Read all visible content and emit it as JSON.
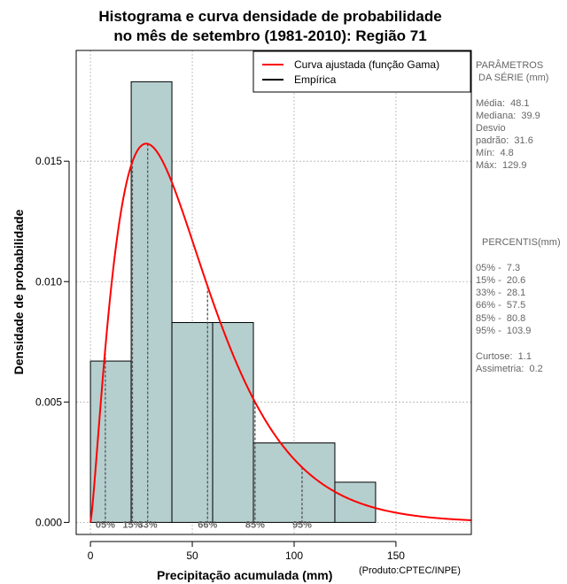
{
  "title": {
    "line1": "Histograma e curva densidade de probabilidade",
    "line2": "no mês de setembro (1981-2010): Região 71"
  },
  "colors": {
    "bars": "#b5cfcf",
    "curve": "#ff0000",
    "grid": "#b0b0b0",
    "text_side": "#666666"
  },
  "chart_data": {
    "type": "bar",
    "xlabel": "Precipitação acumulada (mm)",
    "ylabel": "Densidade de probabilidade",
    "xlim": [
      -7,
      187
    ],
    "ylim": [
      -0.0005,
      0.0196
    ],
    "x_ticks": [
      0,
      50,
      100,
      150
    ],
    "y_ticks": [
      0.0,
      0.005,
      0.01,
      0.015
    ],
    "y_tick_labels": [
      "0.000",
      "0.005",
      "0.010",
      "0.015"
    ],
    "grid": true,
    "bins": [
      {
        "start": 0,
        "end": 20,
        "density": 0.0067
      },
      {
        "start": 20,
        "end": 40,
        "density": 0.0183
      },
      {
        "start": 40,
        "end": 60,
        "density": 0.0083
      },
      {
        "start": 60,
        "end": 80,
        "density": 0.0083
      },
      {
        "start": 80,
        "end": 120,
        "density": 0.0033
      },
      {
        "start": 120,
        "end": 140,
        "density": 0.00167
      }
    ],
    "gamma_curve": {
      "shape": 2.32,
      "rate": 0.0482
    },
    "legend": [
      {
        "label": "Curva ajustada (função Gama)",
        "color": "#ff0000"
      },
      {
        "label": "Empírica",
        "color": "#000000"
      }
    ],
    "legend_position": "top-right",
    "percentile_lines": [
      {
        "label": "05%",
        "x": 7.3
      },
      {
        "label": "15%",
        "x": 20.6
      },
      {
        "label": "33%",
        "x": 28.1
      },
      {
        "label": "66%",
        "x": 57.5
      },
      {
        "label": "85%",
        "x": 80.8
      },
      {
        "label": "95%",
        "x": 103.9
      }
    ]
  },
  "side_panel": {
    "params_header1": "PARÂMETROS",
    "params_header2": "DA SÉRIE (mm)",
    "media": "Média:  48.1",
    "mediana": "Mediana:  39.9",
    "desvio1": "Desvio",
    "desvio2": "padrão:  31.6",
    "min": "Mín:  4.8",
    "max": "Máx:  129.9",
    "perc_header": "PERCENTIS(mm)",
    "p05": "05% -  7.3",
    "p15": "15% -  20.6",
    "p33": "33% -  28.1",
    "p66": "66% -  57.5",
    "p85": "85% -  80.8",
    "p95": "95% -  103.9",
    "curtose": "Curtose:  1.1",
    "assimetria": "Assimetria:  0.2"
  },
  "source_note": "(Produto:CPTEC/INPE)"
}
